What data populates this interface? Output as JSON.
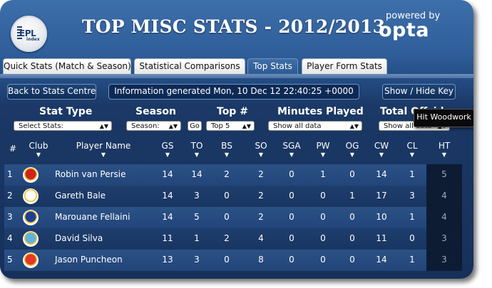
{
  "header": {
    "title": "TOP MISC STATS - 2012/2013",
    "logo": {
      "text": "EPL",
      "sub": "index"
    },
    "powered_by": "powered by",
    "brand": "opta"
  },
  "tabs": [
    {
      "label": "Quick Stats (Match & Season)",
      "active": false
    },
    {
      "label": "Statistical Comparisons",
      "active": false
    },
    {
      "label": "Top Stats",
      "active": true
    },
    {
      "label": "Player Form Stats",
      "active": false
    }
  ],
  "toolbar": {
    "back_label": "Back to Stats Centre",
    "info": "Information generated Mon, 10 Dec 12 22:40:25 +0000",
    "toggle_key_label": "Show / Hide Key"
  },
  "filters": {
    "stat_type": {
      "heading": "Stat Type",
      "value": "Select Stats:"
    },
    "season": {
      "heading": "Season",
      "value": "Season:"
    },
    "go_label": "Go",
    "top": {
      "heading": "Top #",
      "value": "Top 5"
    },
    "minutes": {
      "heading": "Minutes Played",
      "value": "Show all data"
    },
    "offsides": {
      "heading": "Total Offsides",
      "value": "Show all data"
    }
  },
  "tooltip": "Hit Woodwork",
  "table": {
    "columns": [
      "#",
      "Club",
      "Player Name",
      "GS",
      "TO",
      "BS",
      "SO",
      "SGA",
      "PW",
      "OG",
      "CW",
      "CL",
      "HT"
    ],
    "rows": [
      {
        "rank": "1",
        "club_color": "#d0231c",
        "player": "Robin van Persie",
        "stats": [
          "14",
          "14",
          "2",
          "2",
          "0",
          "1",
          "0",
          "14",
          "1",
          "5"
        ]
      },
      {
        "rank": "2",
        "club_color": "#ffffff",
        "player": "Gareth Bale",
        "stats": [
          "14",
          "3",
          "0",
          "2",
          "0",
          "0",
          "1",
          "17",
          "3",
          "4"
        ]
      },
      {
        "rank": "3",
        "club_color": "#1c3f94",
        "player": "Marouane Fellaini",
        "stats": [
          "14",
          "5",
          "0",
          "2",
          "0",
          "0",
          "0",
          "10",
          "1",
          "4"
        ]
      },
      {
        "rank": "4",
        "club_color": "#5fb2e2",
        "player": "David Silva",
        "stats": [
          "11",
          "1",
          "2",
          "4",
          "0",
          "0",
          "0",
          "11",
          "0",
          "3"
        ]
      },
      {
        "rank": "5",
        "club_color": "#e23a2a",
        "player": "Jason Puncheon",
        "stats": [
          "13",
          "3",
          "0",
          "8",
          "0",
          "0",
          "0",
          "14",
          "1",
          "3"
        ]
      }
    ]
  },
  "colors": {
    "accent": "#2f5e9a",
    "dark": "#16305a",
    "tab_active": "#3f6ea6"
  }
}
